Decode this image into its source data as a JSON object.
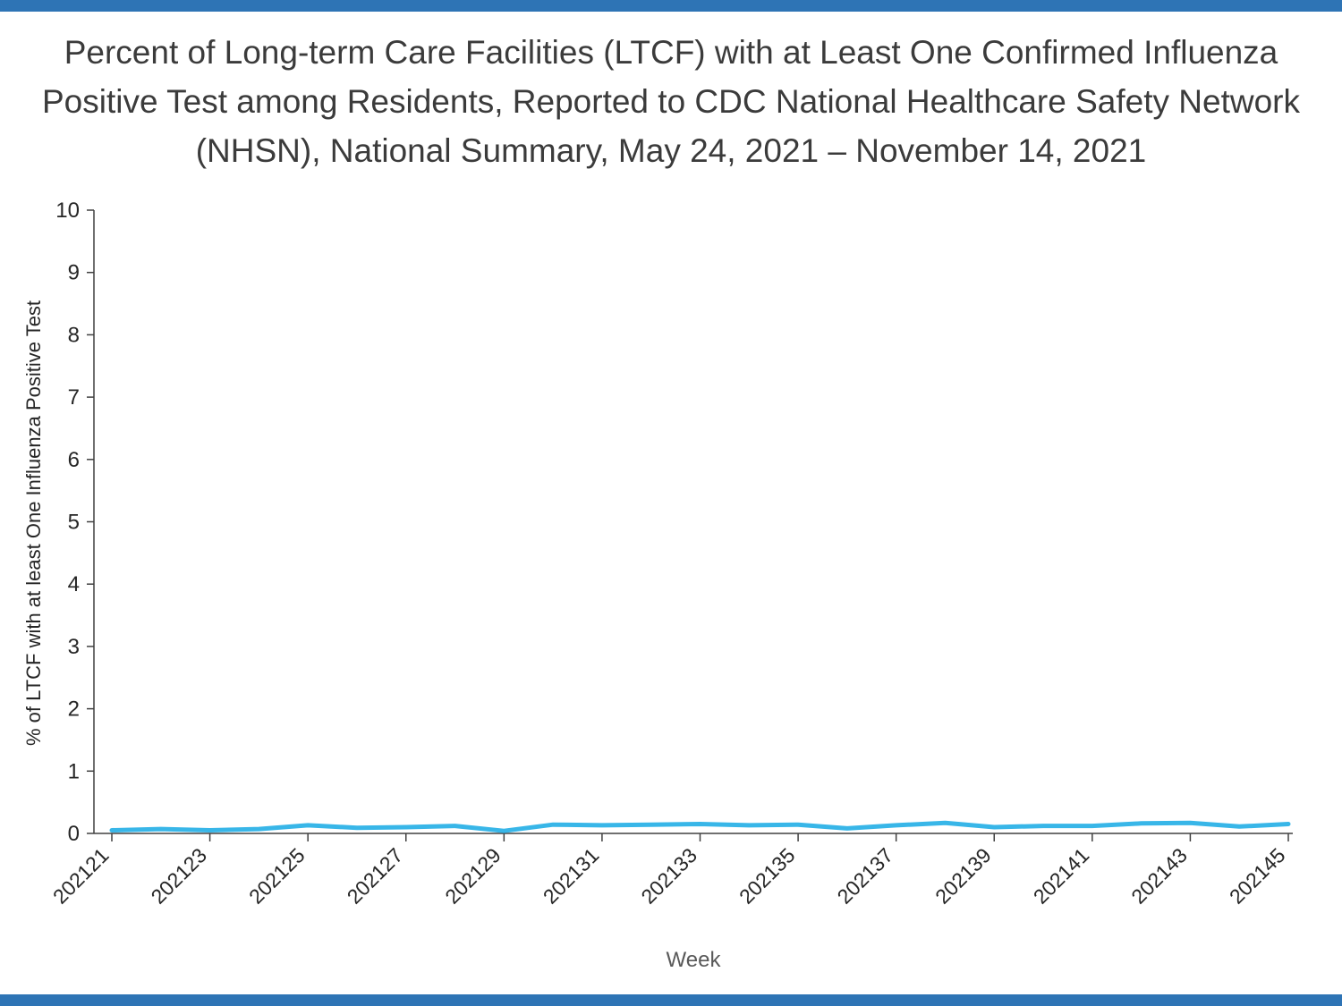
{
  "page": {
    "background_color": "#FFFFFF",
    "accent_bar_color": "#2E74B5"
  },
  "chart_data": {
    "type": "line",
    "title": "Percent of Long-term Care Facilities (LTCF) with at Least One Confirmed Influenza Positive Test among Residents, Reported to CDC National Healthcare Safety Network (NHSN), National Summary, May 24, 2021 – November 14, 2021",
    "xlabel": "Week",
    "ylabel": "% of LTCF with at least One Influenza Positive Test",
    "x": [
      202121,
      202122,
      202123,
      202124,
      202125,
      202126,
      202127,
      202128,
      202129,
      202130,
      202131,
      202132,
      202133,
      202134,
      202135,
      202136,
      202137,
      202138,
      202139,
      202140,
      202141,
      202142,
      202143,
      202144,
      202145
    ],
    "values": [
      0.05,
      0.07,
      0.05,
      0.07,
      0.13,
      0.09,
      0.1,
      0.12,
      0.04,
      0.14,
      0.13,
      0.14,
      0.15,
      0.13,
      0.14,
      0.08,
      0.13,
      0.17,
      0.1,
      0.12,
      0.12,
      0.16,
      0.17,
      0.11,
      0.15
    ],
    "xtick_labels": [
      "202121",
      "202123",
      "202125",
      "202127",
      "202129",
      "202131",
      "202133",
      "202135",
      "202137",
      "202139",
      "202141",
      "202143",
      "202145"
    ],
    "yticks": [
      0,
      1,
      2,
      3,
      4,
      5,
      6,
      7,
      8,
      9,
      10
    ],
    "ylim": [
      0,
      10
    ],
    "grid": false,
    "legend": "none",
    "series_color": "#38B6E8",
    "axis_color": "#404040",
    "tick_label_color": "#262626"
  }
}
